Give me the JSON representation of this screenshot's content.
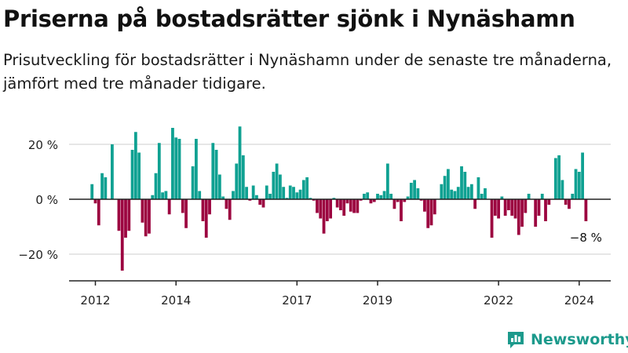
{
  "title": "Priserna på bostadsrätter sjönk i Nynäshamn",
  "subtitle": "Prisutveckling för bostadsrätter i Nynäshamn under de senaste tre månaderna, jämfört med tre månader tidigare.",
  "brand": {
    "name": "Newsworthy",
    "logo_icon": "newsworthy-chart-icon",
    "color": "#1c9a8c"
  },
  "colors": {
    "positive": "#0fa192",
    "negative": "#9c0540",
    "grid": "#dddddd",
    "axis": "#222222"
  },
  "chart_data": {
    "type": "bar",
    "y_unit": "%",
    "ylim": [
      -30,
      30
    ],
    "yticks": [
      -20,
      0,
      20
    ],
    "ytick_labels": [
      "−20 %",
      "0 %",
      "20 %"
    ],
    "xticks": [
      2012,
      2014,
      2017,
      2019,
      2022,
      2024
    ],
    "xtick_labels": [
      "2012",
      "2014",
      "2017",
      "2019",
      "2022",
      "2024"
    ],
    "grid": true,
    "x_start": {
      "year": 2011,
      "month": 12
    },
    "values": [
      5.5,
      -1.5,
      -9.5,
      9.5,
      8.0,
      0.0,
      20.0,
      0.0,
      -11.5,
      -26.0,
      -14.0,
      -11.5,
      18.0,
      24.5,
      17.0,
      -8.5,
      -13.5,
      -12.5,
      1.5,
      9.5,
      20.5,
      2.5,
      3.0,
      -5.5,
      26.0,
      22.5,
      22.0,
      -5.0,
      -10.5,
      0.0,
      12.0,
      22.0,
      3.0,
      -8.0,
      -14.0,
      -5.5,
      20.5,
      18.0,
      9.0,
      1.0,
      -3.5,
      -7.5,
      3.0,
      13.0,
      26.5,
      16.0,
      4.5,
      -0.5,
      5.0,
      1.5,
      -2.0,
      -3.0,
      5.0,
      2.0,
      10.0,
      13.0,
      9.0,
      4.5,
      0.5,
      5.0,
      4.5,
      2.5,
      3.5,
      7.0,
      8.0,
      0.5,
      -0.5,
      -5.0,
      -7.0,
      -12.5,
      -8.0,
      -7.0,
      0.5,
      -3.0,
      -4.0,
      -6.0,
      -1.5,
      -4.5,
      -5.0,
      -5.0,
      -0.5,
      2.0,
      2.5,
      -1.5,
      -1.0,
      2.0,
      1.5,
      3.0,
      13.0,
      2.0,
      -3.5,
      -1.0,
      -8.0,
      -1.0,
      1.0,
      6.0,
      7.0,
      4.0,
      -0.5,
      -4.5,
      -10.5,
      -9.5,
      -5.5,
      0.0,
      5.5,
      8.5,
      11.0,
      3.5,
      3.0,
      4.5,
      12.0,
      10.0,
      4.5,
      5.5,
      -3.5,
      8.0,
      2.0,
      4.0,
      0.0,
      -14.0,
      -6.0,
      -7.0,
      1.0,
      -6.0,
      -4.0,
      -6.0,
      -7.0,
      -13.0,
      -10.0,
      -5.0,
      2.0,
      0.0,
      -10.0,
      -6.0,
      2.0,
      -8.0,
      -2.0,
      0.0,
      15.0,
      16.0,
      7.0,
      -2.0,
      -3.5,
      2.0,
      11.0,
      10.0,
      17.0,
      -8.0
    ],
    "annotations": [
      {
        "label": "−8 %",
        "target": "last_bar"
      }
    ]
  }
}
